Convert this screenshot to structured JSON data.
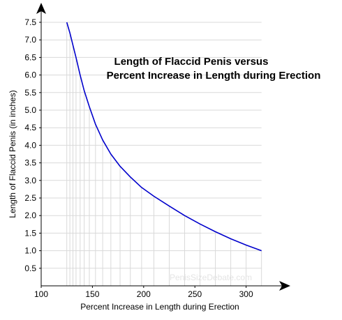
{
  "chart_data": {
    "type": "line",
    "title": "Length of Flaccid Penis versus",
    "subtitle": "Percent Increase in Length during Erection",
    "xlabel": "Percent Increase in Length during Erection",
    "ylabel": "Length of Flaccid Penis (in inches)",
    "xlim": [
      100,
      320
    ],
    "ylim": [
      0,
      7.5
    ],
    "x_ticks": [
      "100",
      "150",
      "200",
      "250",
      "300"
    ],
    "y_ticks": [
      "0.5",
      "1.0",
      "1.5",
      "2.0",
      "2.5",
      "3.0",
      "3.5",
      "4.0",
      "4.5",
      "5.0",
      "5.5",
      "6.0",
      "6.5",
      "7.0",
      "7.5"
    ],
    "grid": true,
    "watermark": "PenisSizeDebate.com",
    "series": [
      {
        "x": [
          125,
          128,
          131,
          134,
          138,
          142,
          147,
          153,
          160,
          168,
          177,
          187,
          198,
          210,
          225,
          240,
          255,
          270,
          285,
          300,
          315
        ],
        "y": [
          7.5,
          7.2,
          6.85,
          6.5,
          6.0,
          5.55,
          5.1,
          4.6,
          4.15,
          3.75,
          3.4,
          3.1,
          2.8,
          2.55,
          2.27,
          2.0,
          1.76,
          1.54,
          1.34,
          1.16,
          1.0
        ]
      }
    ],
    "colors": {
      "line": "#0000cc",
      "grid": "#d9d9d9",
      "axis": "#000000"
    }
  }
}
